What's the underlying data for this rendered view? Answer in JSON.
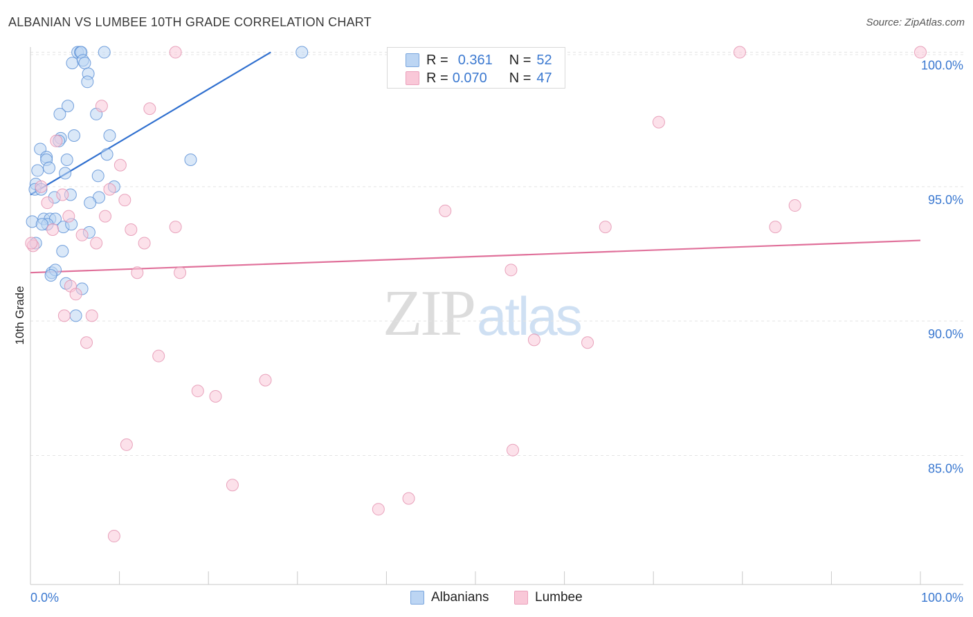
{
  "title": "ALBANIAN VS LUMBEE 10TH GRADE CORRELATION CHART",
  "source": "Source: ZipAtlas.com",
  "watermark": {
    "zip": "ZIP",
    "atlas": "atlas"
  },
  "legend": {
    "r_label": "R =",
    "n_label": "N =",
    "albanians": {
      "r": "0.361",
      "n": "52"
    },
    "lumbee": {
      "r": "0.070",
      "n": "47"
    }
  },
  "bottom_legend": {
    "albanians": "Albanians",
    "lumbee": "Lumbee"
  },
  "colors": {
    "albanians_fill": "#bcd5f3",
    "albanians_stroke": "#5b8fd6",
    "albanians_line": "#2f6fcf",
    "lumbee_fill": "#f9c8d8",
    "lumbee_stroke": "#e493b0",
    "lumbee_line": "#e0709a",
    "axis_text": "#3a78d0",
    "grid": "#e4e4e4"
  },
  "chart_data": {
    "type": "scatter",
    "title": "ALBANIAN VS LUMBEE 10TH GRADE CORRELATION CHART",
    "xlabel": "",
    "ylabel": "10th Grade",
    "xlim": [
      0,
      100
    ],
    "ylim": [
      80.2,
      100.4
    ],
    "x_tick_labels": [
      "0.0%",
      "100.0%"
    ],
    "y_ticks": [
      85,
      90,
      95,
      100
    ],
    "y_tick_labels": [
      "85.0%",
      "90.0%",
      "95.0%",
      "100.0%"
    ],
    "series": [
      {
        "name": "Albanians",
        "r": 0.361,
        "n": 52,
        "trend": {
          "x0": 0,
          "y0": 94.7,
          "x1": 27,
          "y1": 100.0
        },
        "points": [
          [
            5.3,
            100
          ],
          [
            5.6,
            100
          ],
          [
            5.7,
            100
          ],
          [
            8.3,
            100
          ],
          [
            30.5,
            100
          ],
          [
            4.7,
            99.6
          ],
          [
            5.9,
            99.7
          ],
          [
            6.1,
            99.6
          ],
          [
            6.5,
            99.2
          ],
          [
            6.4,
            98.9
          ],
          [
            4.2,
            98.0
          ],
          [
            3.3,
            97.7
          ],
          [
            7.4,
            97.7
          ],
          [
            3.4,
            96.8
          ],
          [
            3.2,
            96.7
          ],
          [
            4.9,
            96.9
          ],
          [
            8.9,
            96.9
          ],
          [
            1.1,
            96.4
          ],
          [
            1.8,
            96.1
          ],
          [
            1.8,
            96.0
          ],
          [
            4.1,
            96.0
          ],
          [
            8.6,
            96.2
          ],
          [
            18.0,
            96.0
          ],
          [
            2.1,
            95.7
          ],
          [
            0.8,
            95.6
          ],
          [
            3.9,
            95.5
          ],
          [
            7.6,
            95.4
          ],
          [
            0.6,
            95.1
          ],
          [
            0.5,
            94.9
          ],
          [
            9.4,
            95.0
          ],
          [
            1.2,
            94.9
          ],
          [
            4.5,
            94.7
          ],
          [
            2.7,
            94.6
          ],
          [
            7.7,
            94.6
          ],
          [
            6.7,
            94.4
          ],
          [
            0.2,
            93.7
          ],
          [
            1.5,
            93.8
          ],
          [
            2.2,
            93.8
          ],
          [
            2.8,
            93.8
          ],
          [
            1.9,
            93.6
          ],
          [
            1.3,
            93.6
          ],
          [
            3.7,
            93.5
          ],
          [
            4.6,
            93.6
          ],
          [
            6.6,
            93.3
          ],
          [
            0.6,
            92.9
          ],
          [
            3.6,
            92.6
          ],
          [
            2.4,
            91.8
          ],
          [
            2.8,
            91.9
          ],
          [
            2.3,
            91.7
          ],
          [
            4.0,
            91.4
          ],
          [
            5.8,
            91.2
          ],
          [
            5.1,
            90.2
          ]
        ]
      },
      {
        "name": "Lumbee",
        "r": 0.07,
        "n": 47,
        "trend": {
          "x0": 0,
          "y0": 91.8,
          "x1": 100,
          "y1": 93.0
        },
        "points": [
          [
            16.3,
            100
          ],
          [
            79.7,
            100
          ],
          [
            100,
            100
          ],
          [
            8.0,
            98.0
          ],
          [
            13.4,
            97.9
          ],
          [
            70.6,
            97.4
          ],
          [
            2.9,
            96.7
          ],
          [
            10.1,
            95.8
          ],
          [
            1.2,
            95.0
          ],
          [
            8.9,
            94.9
          ],
          [
            3.6,
            94.7
          ],
          [
            10.6,
            94.5
          ],
          [
            1.9,
            94.4
          ],
          [
            46.6,
            94.1
          ],
          [
            85.9,
            94.3
          ],
          [
            4.3,
            93.9
          ],
          [
            8.4,
            93.9
          ],
          [
            16.3,
            93.5
          ],
          [
            11.3,
            93.4
          ],
          [
            2.5,
            93.4
          ],
          [
            64.6,
            93.5
          ],
          [
            83.7,
            93.5
          ],
          [
            5.8,
            93.2
          ],
          [
            7.4,
            92.9
          ],
          [
            12.8,
            92.9
          ],
          [
            0.3,
            92.8
          ],
          [
            12.0,
            91.8
          ],
          [
            16.8,
            91.8
          ],
          [
            54.0,
            91.9
          ],
          [
            4.5,
            91.3
          ],
          [
            5.1,
            91.0
          ],
          [
            3.8,
            90.2
          ],
          [
            6.9,
            90.2
          ],
          [
            6.3,
            89.2
          ],
          [
            56.6,
            89.3
          ],
          [
            62.6,
            89.2
          ],
          [
            14.4,
            88.7
          ],
          [
            26.4,
            87.8
          ],
          [
            18.8,
            87.4
          ],
          [
            20.8,
            87.2
          ],
          [
            10.8,
            85.4
          ],
          [
            54.2,
            85.2
          ],
          [
            22.7,
            83.9
          ],
          [
            42.5,
            83.4
          ],
          [
            39.1,
            83.0
          ],
          [
            9.4,
            82.0
          ],
          [
            0.1,
            92.9
          ]
        ]
      }
    ]
  }
}
